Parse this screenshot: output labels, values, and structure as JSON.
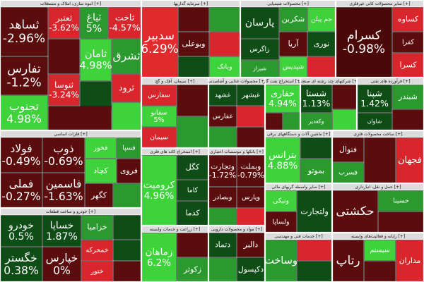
{
  "chart_data": {
    "type": "treemap",
    "groups": [
      {
        "name": "انبوه سازی، املاک و مستغلات [+]",
        "items": [
          {
            "name": "ثساهد",
            "value": -2.96,
            "value_label": "-2.96%",
            "color": "#5b0d0d"
          },
          {
            "name": "تفارس",
            "value": -1.2,
            "value_label": "-1.2%",
            "color": "#5b0d0d"
          },
          {
            "name": "تجنوب",
            "value": 4.98,
            "value_label": "4.98%",
            "color": "#3ed33a"
          },
          {
            "name": "ثعتبر",
            "value": -3.62,
            "value_label": "-3.62%",
            "color": "#d8262c"
          },
          {
            "name": "ثباغ",
            "value": 5,
            "value_label": "5%",
            "color": "#2a9a2e"
          },
          {
            "name": "ثاخت",
            "value": -4.57,
            "value_label": "-4.57%",
            "color": "#d8262c"
          },
          {
            "name": "ثامان",
            "value": 4.98,
            "value_label": "4.98%",
            "color": "#3ed33a"
          },
          {
            "color": "#5b0d0d"
          },
          {
            "name": "ثنوسا",
            "value": -3.24,
            "value_label": "-3.24%",
            "color": "#d8262c"
          },
          {
            "name": "ثشرق",
            "color": "#2a9a2e"
          },
          {
            "color": "#0f4d16"
          },
          {
            "name": "ثرود",
            "color": "#d8262c"
          },
          {
            "color": "#5b0d0d"
          },
          {
            "color": "#3ed33a"
          }
        ]
      },
      {
        "name": "فلزات اساسی [+]",
        "items": [
          {
            "name": "فولاد",
            "value": -0.49,
            "value_label": "-0.49%",
            "color": "#5b0d0d"
          },
          {
            "name": "فملی",
            "value": -0.27,
            "value_label": "-0.27%",
            "color": "#5b0d0d"
          },
          {
            "name": "فخوز",
            "color": "#3ed33a"
          },
          {
            "name": "ذوب",
            "value": -0.69,
            "value_label": "-0.69%",
            "color": "#5b0d0d"
          },
          {
            "name": "فاسمین",
            "value": -1.63,
            "value_label": "-1.63%",
            "color": "#5b0d0d"
          },
          {
            "name": "فسپا",
            "color": "#2a9a2e"
          },
          {
            "name": "کچاد",
            "color": "#3ed33a"
          },
          {
            "name": "فروی",
            "color": "#5b0d0d"
          },
          {
            "name": "کگهر",
            "color": "#5b0d0d"
          },
          {
            "color": "#2a9a2e"
          }
        ]
      },
      {
        "name": "خودرو و ساخت قطعات [+]",
        "items": [
          {
            "name": "خودرو",
            "value": 0.5,
            "value_label": "0.5%",
            "color": "#0f4d16"
          },
          {
            "name": "خگستر",
            "value": 0.38,
            "value_label": "0.38%",
            "color": "#0f4d16"
          },
          {
            "name": "خساپا",
            "value": 1.87,
            "value_label": "1.87%",
            "color": "#0f4d16"
          },
          {
            "name": "خپارس",
            "value": 0,
            "value_label": "0%",
            "color": "#5b0d0d"
          },
          {
            "name": "خزامیا",
            "color": "#2a9a2e"
          },
          {
            "color": "#0f4d16"
          },
          {
            "name": "خمحرکه",
            "color": "#d8262c"
          },
          {
            "color": "#0f4d16"
          },
          {
            "name": "ختور",
            "color": "#d8262c"
          },
          {
            "color": "#5b0d0d"
          }
        ]
      },
      {
        "name": "سرمایه گذاریها [+]",
        "items": [
          {
            "name": "سدبیر",
            "value": 6.29,
            "value_label": "6.29%",
            "color": "#e02a2e"
          },
          {
            "color": "#5b0d0d"
          },
          {
            "color": "#2a9a2e"
          },
          {
            "name": "وبوعلی",
            "color": "#5b0d0d"
          },
          {
            "color": "#d8262c"
          },
          {
            "color": "#0f4d16"
          },
          {
            "name": "وبانک",
            "color": "#3ed33a"
          }
        ]
      },
      {
        "name": "محصولات شیمیایی [+]",
        "items": [
          {
            "name": "پارسان",
            "color": "#0f4d16"
          },
          {
            "name": "شکربن",
            "color": "#2a9a2e"
          },
          {
            "name": "جم پیلن",
            "color": "#3ed33a"
          },
          {
            "name": "زاگرس",
            "color": "#0f4d16"
          },
          {
            "name": "شیراز",
            "color": "#2a9a2e"
          },
          {
            "name": "آریا",
            "color": "#5b0d0d"
          },
          {
            "name": "نوری",
            "color": "#0f4d16"
          },
          {
            "name": "شپدیس",
            "color": "#3ed33a"
          },
          {
            "color": "#d8262c"
          }
        ]
      },
      {
        "name": "سایر محصولات کانی غیرفلزی [+]",
        "items": [
          {
            "name": "کسرام",
            "value": -0.98,
            "value_label": "-0.98%",
            "color": "#4a0808"
          },
          {
            "name": "کساوه",
            "color": "#d8262c"
          },
          {
            "name": "کفرا",
            "color": "#5b0d0d"
          },
          {
            "name": "کسرا",
            "color": "#d8262c"
          }
        ]
      },
      {
        "name": "سیمان، آهک و گچ [+]",
        "items": [
          {
            "name": "سفارس",
            "color": "#d8262c"
          },
          {
            "name": "سفانو",
            "value": 5,
            "value_label": "5%",
            "color": "#3ed33a"
          },
          {
            "name": "سیمان",
            "color": "#d8262c"
          },
          {
            "color": "#5b0d0d"
          },
          {
            "color": "#2a9a2e"
          }
        ]
      },
      {
        "name": "محصولات غذایی و آشامیدنی [+]",
        "items": [
          {
            "name": "غشهد",
            "color": "#0f4d16"
          },
          {
            "name": "غبشهر",
            "color": "#0f4d16"
          },
          {
            "name": "غفارس",
            "color": "#5b0d0d"
          },
          {
            "color": "#d8262c"
          },
          {
            "color": "#2a9a2e"
          },
          {
            "color": "#5b0d0d"
          }
        ]
      },
      {
        "name": "استخراج نفت گاز [+]",
        "items": [
          {
            "name": "حفاری",
            "value": 4.94,
            "value_label": "4.94%",
            "color": "#3ed33a"
          },
          {
            "color": "#5b0d0d"
          },
          {
            "color": "#2a9a2e"
          }
        ]
      },
      {
        "name": "شرکتهای چند رشته ای صنعتی [+]",
        "items": [
          {
            "name": "شستا",
            "value": 1.13,
            "value_label": "1.13%",
            "color": "#0f4d16"
          },
          {
            "name": "وکغدیر",
            "color": "#2a9a2e"
          },
          {
            "color": "#5b0d0d"
          },
          {
            "color": "#3ed33a"
          }
        ]
      },
      {
        "name": "فرآورده های نفتی [+]",
        "items": [
          {
            "name": "شپنا",
            "value": 1.42,
            "value_label": "1.42%",
            "color": "#0f4d16"
          },
          {
            "name": "شاوان",
            "color": "#0f4d16"
          },
          {
            "name": "شبندر",
            "color": "#2a9a2e"
          },
          {
            "color": "#5b0d0d"
          }
        ]
      },
      {
        "name": "استخراج کانه های فلزی [+]",
        "items": [
          {
            "name": "کرومیت",
            "value": 4.96,
            "value_label": "4.96%",
            "color": "#3ed33a"
          },
          {
            "name": "کگل",
            "color": "#0f4d16"
          },
          {
            "name": "کاما",
            "color": "#0f4d16"
          },
          {
            "name": "کدما",
            "color": "#0f4d16"
          }
        ]
      },
      {
        "name": "بانکها و موسسات اعتباری [+]",
        "items": [
          {
            "name": "وتجارت",
            "value": -1.72,
            "value_label": "-1.72%",
            "color": "#5b0d0d"
          },
          {
            "name": "وبملت",
            "value": -0.79,
            "value_label": "-0.79%",
            "color": "#5b0d0d"
          },
          {
            "name": "وبصادر",
            "color": "#5b0d0d"
          },
          {
            "name": "وپارس",
            "color": "#5b0d0d"
          },
          {
            "color": "#2a9a2e"
          },
          {
            "color": "#d8262c"
          }
        ]
      },
      {
        "name": "زراعت و خدمات وابسته [+]",
        "items": [
          {
            "name": "زماهان",
            "value": 6.2,
            "value_label": "6.2%",
            "color": "#3ed33a"
          },
          {
            "color": "#5b0d0d"
          },
          {
            "name": "زکوثر",
            "color": "#2a9a2e"
          }
        ]
      },
      {
        "name": "مواد و محصولات دارویی [+]",
        "items": [
          {
            "name": "دتماد",
            "color": "#0f4d16"
          },
          {
            "name": "دالبر",
            "color": "#5b0d0d"
          },
          {
            "color": "#2a9a2e"
          },
          {
            "name": "دکپسول",
            "color": "#0f4d16"
          }
        ]
      },
      {
        "name": "ماشین آلات و دستگاههای برقی [+]",
        "items": [
          {
            "name": "بترانس",
            "value": 4.88,
            "value_label": "4.88%",
            "color": "#3ed33a"
          },
          {
            "color": "#0f4d16"
          },
          {
            "name": "بموتو",
            "color": "#2a9a2e"
          }
        ]
      },
      {
        "name": "ساخت محصولات فلزی [+]",
        "items": [
          {
            "name": "فنوال",
            "color": "#5b0d0d"
          },
          {
            "name": "فسرب",
            "color": "#2a9a2e"
          },
          {
            "color": "#5b0d0d"
          },
          {
            "name": "فجهان",
            "color": "#d8262c"
          }
        ]
      },
      {
        "name": "سایر واسطه گریهای مالی [+]",
        "items": [
          {
            "name": "ونیکی",
            "color": "#3ed33a"
          },
          {
            "name": "ولساپا",
            "color": "#5b0d0d"
          },
          {
            "name": "ولتجارت",
            "color": "#0f4d16"
          }
        ]
      },
      {
        "name": "حمل و نقل، انبارداری [+]",
        "items": [
          {
            "name": "حکشتی",
            "color": "#5b0d0d"
          },
          {
            "name": "حسینا",
            "color": "#2a9a2e"
          },
          {
            "color": "#5b0d0d"
          }
        ]
      },
      {
        "name": "خدمات فنی و مهندسی [+]",
        "items": [
          {
            "name": "وساخت",
            "color": "#2a9a2e"
          },
          {
            "color": "#d8262c"
          },
          {
            "color": "#0f4d16"
          }
        ]
      },
      {
        "name": "رایانه و فعالیت‌های وابسته [+]",
        "items": [
          {
            "name": "رتاپ",
            "color": "#5b0d0d"
          },
          {
            "name": "سیستم",
            "color": "#3ed33a"
          },
          {
            "color": "#5b0d0d"
          },
          {
            "name": "مداران",
            "color": "#d8262c"
          }
        ]
      }
    ]
  }
}
